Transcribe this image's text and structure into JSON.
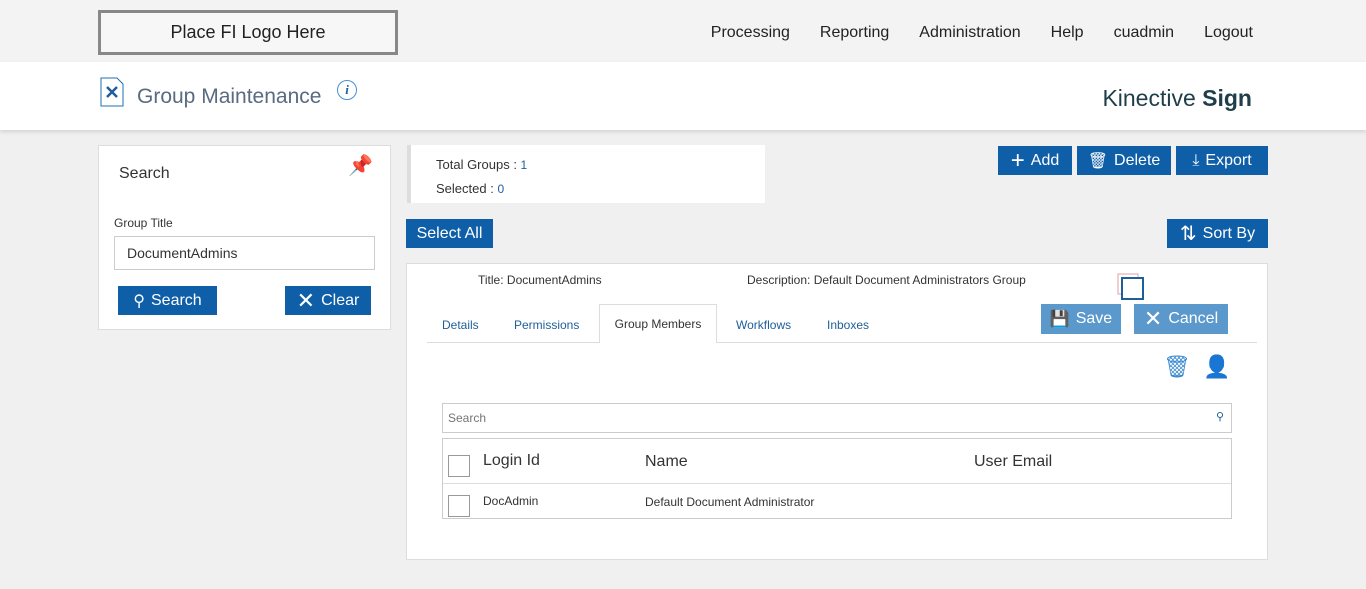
{
  "logo": "Place FI Logo Here",
  "nav": [
    "Processing",
    "Reporting",
    "Administration",
    "Help",
    "cuadmin",
    "Logout"
  ],
  "page_title": "Group Maintenance",
  "brand": {
    "light": "Kinective ",
    "bold": "Sign"
  },
  "search_panel": {
    "title": "Search",
    "field_label": "Group Title",
    "field_value": "DocumentAdmins",
    "search_label": "Search",
    "clear_label": "Clear"
  },
  "summary": {
    "total_label": "Total Groups : ",
    "total": "1",
    "selected_label": "Selected : ",
    "selected": "0"
  },
  "toolbar": {
    "add": "Add",
    "delete": "Delete",
    "export": "Export",
    "select_all": "Select All",
    "sort_by": "Sort By"
  },
  "group": {
    "title_label": "Title:",
    "title": "DocumentAdmins",
    "desc_label": "Description:",
    "desc": "Default Document Administrators Group",
    "save": "Save",
    "cancel": "Cancel"
  },
  "tabs": [
    "Details",
    "Permissions",
    "Group Members",
    "Workflows",
    "Inboxes"
  ],
  "members": {
    "search_placeholder": "Search",
    "columns": [
      "Login Id",
      "Name",
      "User Email"
    ],
    "rows": [
      {
        "login": "DocAdmin",
        "name": "Default Document Administrator",
        "email": ""
      }
    ]
  }
}
